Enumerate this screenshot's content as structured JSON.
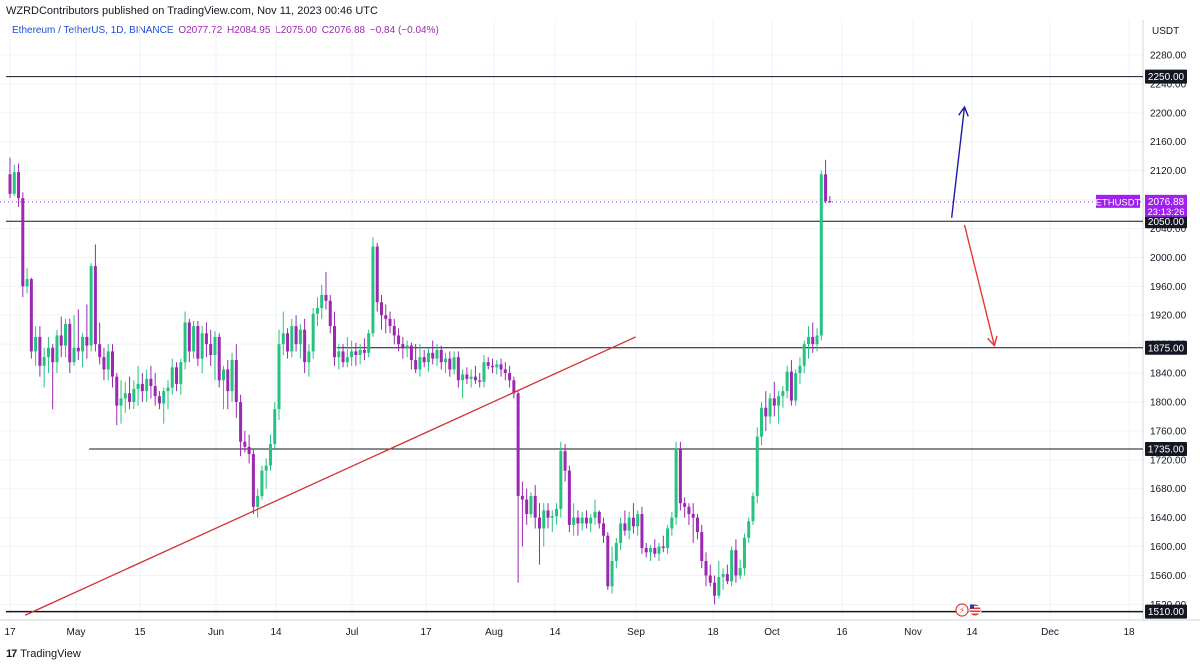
{
  "header": {
    "publisher_line": "WZRDContributors published on TradingView.com, Nov 11, 2023 00:46 UTC",
    "symbol": "Ethereum / TetherUS, 1D, BINANCE",
    "open": "O2077.72",
    "high": "H2084.95",
    "low": "L2075.00",
    "close": "C2076.88",
    "change": "−0.84 (−0.04%)"
  },
  "footer": {
    "brand": "TradingView",
    "logo_text": "17"
  },
  "colors": {
    "up": "#26c281",
    "down": "#9c27b0",
    "support_line": "#131722",
    "trendline": "#d32f2f",
    "arrow_up": "#1a1aa6",
    "arrow_down": "#e53935",
    "price_label_bg": "#131722",
    "current_price_bg": "#a020f0"
  },
  "chart_data": {
    "type": "candlestick",
    "symbol": "ETHUSDT",
    "unit": "USDT",
    "y_ticks": [
      1520,
      1560,
      1600,
      1640,
      1680,
      1720,
      1760,
      1800,
      1840,
      1880,
      1920,
      1960,
      2000,
      2040,
      2080,
      2120,
      2160,
      2200,
      2240,
      2280
    ],
    "ylim": [
      1505,
      2295
    ],
    "x_labels": [
      "17",
      "May",
      "15",
      "Jun",
      "14",
      "Jul",
      "17",
      "Aug",
      "14",
      "Sep",
      "18",
      "Oct",
      "16",
      "Nov",
      "14",
      "Dec",
      "18"
    ],
    "current_price": {
      "label": "ETHUSDT",
      "value": "2076.88",
      "countdown": "23:13:26",
      "price": 2076.88
    },
    "horizontal_levels": [
      {
        "price": 2250,
        "label": "2250.00",
        "from_day": 0
      },
      {
        "price": 2050,
        "label": "2050.00",
        "from_day": 0
      },
      {
        "price": 1875,
        "label": "1875.00",
        "from_day": 77
      },
      {
        "price": 1735,
        "label": "1735.00",
        "from_day": 19
      },
      {
        "price": 1510,
        "label": "1510.00",
        "from_day": 0
      }
    ],
    "trendline": {
      "start": {
        "day": 4,
        "price": 1505
      },
      "end": {
        "day": 147,
        "price": 1890
      }
    },
    "arrows": [
      {
        "direction": "up",
        "from": {
          "day": 221,
          "price": 2055
        },
        "to": {
          "day": 224,
          "price": 2208
        }
      },
      {
        "direction": "down",
        "from": {
          "day": 224,
          "price": 2045
        },
        "to": {
          "day": 231,
          "price": 1878
        }
      }
    ],
    "candles": [
      [
        2115,
        2138,
        2082,
        2088
      ],
      [
        2088,
        2128,
        2085,
        2118
      ],
      [
        2118,
        2130,
        2070,
        2082
      ],
      [
        2082,
        2090,
        1945,
        1960
      ],
      [
        1960,
        1985,
        1950,
        1970
      ],
      [
        1970,
        1972,
        1860,
        1870
      ],
      [
        1870,
        1905,
        1850,
        1890
      ],
      [
        1890,
        1905,
        1835,
        1850
      ],
      [
        1850,
        1875,
        1820,
        1862
      ],
      [
        1862,
        1890,
        1840,
        1875
      ],
      [
        1875,
        1880,
        1790,
        1855
      ],
      [
        1855,
        1900,
        1840,
        1892
      ],
      [
        1892,
        1918,
        1862,
        1878
      ],
      [
        1878,
        1915,
        1862,
        1908
      ],
      [
        1908,
        1915,
        1840,
        1855
      ],
      [
        1855,
        1920,
        1850,
        1875
      ],
      [
        1875,
        1928,
        1858,
        1870
      ],
      [
        1870,
        1895,
        1848,
        1890
      ],
      [
        1890,
        1935,
        1860,
        1878
      ],
      [
        1878,
        1992,
        1870,
        1988
      ],
      [
        1988,
        2018,
        1870,
        1880
      ],
      [
        1880,
        1910,
        1852,
        1862
      ],
      [
        1862,
        1875,
        1830,
        1845
      ],
      [
        1845,
        1880,
        1830,
        1870
      ],
      [
        1870,
        1880,
        1820,
        1835
      ],
      [
        1835,
        1840,
        1768,
        1795
      ],
      [
        1795,
        1830,
        1770,
        1805
      ],
      [
        1805,
        1828,
        1785,
        1812
      ],
      [
        1812,
        1835,
        1790,
        1800
      ],
      [
        1800,
        1830,
        1790,
        1818
      ],
      [
        1818,
        1850,
        1795,
        1825
      ],
      [
        1825,
        1840,
        1800,
        1815
      ],
      [
        1815,
        1845,
        1800,
        1832
      ],
      [
        1832,
        1850,
        1805,
        1822
      ],
      [
        1822,
        1840,
        1795,
        1808
      ],
      [
        1808,
        1815,
        1790,
        1798
      ],
      [
        1798,
        1820,
        1770,
        1815
      ],
      [
        1815,
        1830,
        1790,
        1820
      ],
      [
        1820,
        1860,
        1810,
        1848
      ],
      [
        1848,
        1855,
        1815,
        1825
      ],
      [
        1825,
        1860,
        1810,
        1855
      ],
      [
        1855,
        1925,
        1845,
        1910
      ],
      [
        1910,
        1915,
        1855,
        1870
      ],
      [
        1870,
        1912,
        1860,
        1905
      ],
      [
        1905,
        1912,
        1850,
        1860
      ],
      [
        1860,
        1905,
        1840,
        1895
      ],
      [
        1895,
        1910,
        1862,
        1880
      ],
      [
        1880,
        1900,
        1850,
        1865
      ],
      [
        1865,
        1898,
        1830,
        1890
      ],
      [
        1890,
        1895,
        1820,
        1830
      ],
      [
        1830,
        1850,
        1790,
        1845
      ],
      [
        1845,
        1858,
        1790,
        1815
      ],
      [
        1815,
        1868,
        1800,
        1858
      ],
      [
        1858,
        1880,
        1778,
        1800
      ],
      [
        1800,
        1810,
        1725,
        1745
      ],
      [
        1745,
        1760,
        1730,
        1738
      ],
      [
        1738,
        1755,
        1715,
        1728
      ],
      [
        1728,
        1735,
        1645,
        1655
      ],
      [
        1655,
        1680,
        1640,
        1670
      ],
      [
        1670,
        1712,
        1665,
        1705
      ],
      [
        1705,
        1722,
        1680,
        1712
      ],
      [
        1712,
        1755,
        1705,
        1742
      ],
      [
        1742,
        1800,
        1735,
        1790
      ],
      [
        1790,
        1900,
        1775,
        1880
      ],
      [
        1880,
        1925,
        1865,
        1895
      ],
      [
        1895,
        1902,
        1860,
        1870
      ],
      [
        1870,
        1915,
        1862,
        1905
      ],
      [
        1905,
        1920,
        1870,
        1880
      ],
      [
        1880,
        1908,
        1860,
        1900
      ],
      [
        1900,
        1915,
        1840,
        1855
      ],
      [
        1855,
        1880,
        1835,
        1870
      ],
      [
        1870,
        1930,
        1860,
        1922
      ],
      [
        1922,
        1945,
        1905,
        1930
      ],
      [
        1930,
        1962,
        1915,
        1948
      ],
      [
        1948,
        1980,
        1928,
        1940
      ],
      [
        1940,
        1948,
        1895,
        1905
      ],
      [
        1905,
        1925,
        1850,
        1862
      ],
      [
        1862,
        1880,
        1845,
        1870
      ],
      [
        1870,
        1880,
        1848,
        1855
      ],
      [
        1855,
        1890,
        1848,
        1862
      ],
      [
        1862,
        1885,
        1850,
        1870
      ],
      [
        1870,
        1882,
        1850,
        1865
      ],
      [
        1865,
        1880,
        1852,
        1872
      ],
      [
        1872,
        1888,
        1858,
        1868
      ],
      [
        1868,
        1900,
        1862,
        1895
      ],
      [
        1895,
        2028,
        1890,
        2015
      ],
      [
        2015,
        2020,
        1925,
        1938
      ],
      [
        1938,
        1948,
        1900,
        1920
      ],
      [
        1920,
        1935,
        1895,
        1915
      ],
      [
        1915,
        1925,
        1895,
        1905
      ],
      [
        1905,
        1915,
        1880,
        1892
      ],
      [
        1892,
        1902,
        1870,
        1880
      ],
      [
        1880,
        1890,
        1860,
        1875
      ],
      [
        1875,
        1885,
        1862,
        1878
      ],
      [
        1878,
        1882,
        1845,
        1858
      ],
      [
        1858,
        1880,
        1840,
        1845
      ],
      [
        1845,
        1880,
        1835,
        1862
      ],
      [
        1862,
        1872,
        1848,
        1855
      ],
      [
        1855,
        1875,
        1842,
        1868
      ],
      [
        1868,
        1885,
        1852,
        1860
      ],
      [
        1860,
        1880,
        1850,
        1872
      ],
      [
        1872,
        1878,
        1845,
        1855
      ],
      [
        1855,
        1868,
        1840,
        1860
      ],
      [
        1860,
        1870,
        1835,
        1845
      ],
      [
        1845,
        1870,
        1838,
        1862
      ],
      [
        1862,
        1870,
        1820,
        1830
      ],
      [
        1830,
        1845,
        1805,
        1838
      ],
      [
        1838,
        1848,
        1825,
        1832
      ],
      [
        1832,
        1845,
        1820,
        1835
      ],
      [
        1835,
        1850,
        1825,
        1830
      ],
      [
        1830,
        1840,
        1820,
        1828
      ],
      [
        1828,
        1865,
        1820,
        1855
      ],
      [
        1855,
        1862,
        1845,
        1850
      ],
      [
        1850,
        1860,
        1840,
        1848
      ],
      [
        1848,
        1858,
        1838,
        1852
      ],
      [
        1852,
        1860,
        1835,
        1845
      ],
      [
        1845,
        1855,
        1830,
        1840
      ],
      [
        1840,
        1850,
        1820,
        1830
      ],
      [
        1830,
        1835,
        1805,
        1812
      ],
      [
        1812,
        1815,
        1550,
        1670
      ],
      [
        1670,
        1690,
        1600,
        1665
      ],
      [
        1665,
        1680,
        1630,
        1645
      ],
      [
        1645,
        1675,
        1640,
        1670
      ],
      [
        1670,
        1685,
        1625,
        1640
      ],
      [
        1640,
        1660,
        1575,
        1625
      ],
      [
        1625,
        1660,
        1600,
        1650
      ],
      [
        1650,
        1660,
        1625,
        1640
      ],
      [
        1640,
        1650,
        1620,
        1642
      ],
      [
        1642,
        1660,
        1630,
        1652
      ],
      [
        1652,
        1745,
        1640,
        1732
      ],
      [
        1732,
        1742,
        1690,
        1705
      ],
      [
        1705,
        1712,
        1620,
        1630
      ],
      [
        1630,
        1660,
        1615,
        1640
      ],
      [
        1640,
        1650,
        1615,
        1632
      ],
      [
        1632,
        1648,
        1622,
        1640
      ],
      [
        1640,
        1650,
        1625,
        1632
      ],
      [
        1632,
        1645,
        1620,
        1640
      ],
      [
        1640,
        1665,
        1630,
        1648
      ],
      [
        1648,
        1650,
        1625,
        1632
      ],
      [
        1632,
        1640,
        1605,
        1615
      ],
      [
        1615,
        1620,
        1540,
        1545
      ],
      [
        1545,
        1600,
        1535,
        1580
      ],
      [
        1580,
        1612,
        1570,
        1605
      ],
      [
        1605,
        1640,
        1595,
        1632
      ],
      [
        1632,
        1650,
        1615,
        1622
      ],
      [
        1622,
        1648,
        1610,
        1640
      ],
      [
        1640,
        1660,
        1618,
        1628
      ],
      [
        1628,
        1650,
        1615,
        1645
      ],
      [
        1645,
        1655,
        1590,
        1598
      ],
      [
        1598,
        1605,
        1585,
        1592
      ],
      [
        1592,
        1602,
        1580,
        1598
      ],
      [
        1598,
        1610,
        1585,
        1590
      ],
      [
        1590,
        1605,
        1580,
        1600
      ],
      [
        1600,
        1615,
        1592,
        1598
      ],
      [
        1598,
        1630,
        1590,
        1625
      ],
      [
        1625,
        1648,
        1615,
        1640
      ],
      [
        1640,
        1745,
        1630,
        1735
      ],
      [
        1735,
        1745,
        1650,
        1660
      ],
      [
        1660,
        1668,
        1640,
        1655
      ],
      [
        1655,
        1660,
        1630,
        1645
      ],
      [
        1645,
        1660,
        1605,
        1640
      ],
      [
        1640,
        1645,
        1610,
        1620
      ],
      [
        1620,
        1630,
        1570,
        1580
      ],
      [
        1580,
        1592,
        1545,
        1560
      ],
      [
        1560,
        1575,
        1545,
        1550
      ],
      [
        1550,
        1560,
        1520,
        1532
      ],
      [
        1532,
        1580,
        1528,
        1558
      ],
      [
        1558,
        1570,
        1540,
        1562
      ],
      [
        1562,
        1575,
        1548,
        1552
      ],
      [
        1552,
        1600,
        1545,
        1595
      ],
      [
        1595,
        1610,
        1550,
        1560
      ],
      [
        1560,
        1582,
        1555,
        1570
      ],
      [
        1570,
        1618,
        1560,
        1612
      ],
      [
        1612,
        1640,
        1605,
        1635
      ],
      [
        1635,
        1675,
        1630,
        1670
      ],
      [
        1670,
        1765,
        1660,
        1752
      ],
      [
        1752,
        1800,
        1740,
        1792
      ],
      [
        1792,
        1815,
        1760,
        1780
      ],
      [
        1780,
        1812,
        1770,
        1805
      ],
      [
        1805,
        1828,
        1780,
        1795
      ],
      [
        1795,
        1815,
        1770,
        1808
      ],
      [
        1808,
        1822,
        1792,
        1815
      ],
      [
        1815,
        1850,
        1805,
        1842
      ],
      [
        1842,
        1858,
        1795,
        1802
      ],
      [
        1802,
        1845,
        1795,
        1840
      ],
      [
        1840,
        1862,
        1825,
        1850
      ],
      [
        1850,
        1885,
        1840,
        1880
      ],
      [
        1880,
        1905,
        1860,
        1890
      ],
      [
        1890,
        1910,
        1868,
        1880
      ],
      [
        1880,
        1902,
        1870,
        1892
      ],
      [
        1892,
        2120,
        1885,
        2115
      ],
      [
        2115,
        2135,
        2075,
        2078
      ],
      [
        2078,
        2085,
        2075,
        2076.88
      ]
    ]
  }
}
